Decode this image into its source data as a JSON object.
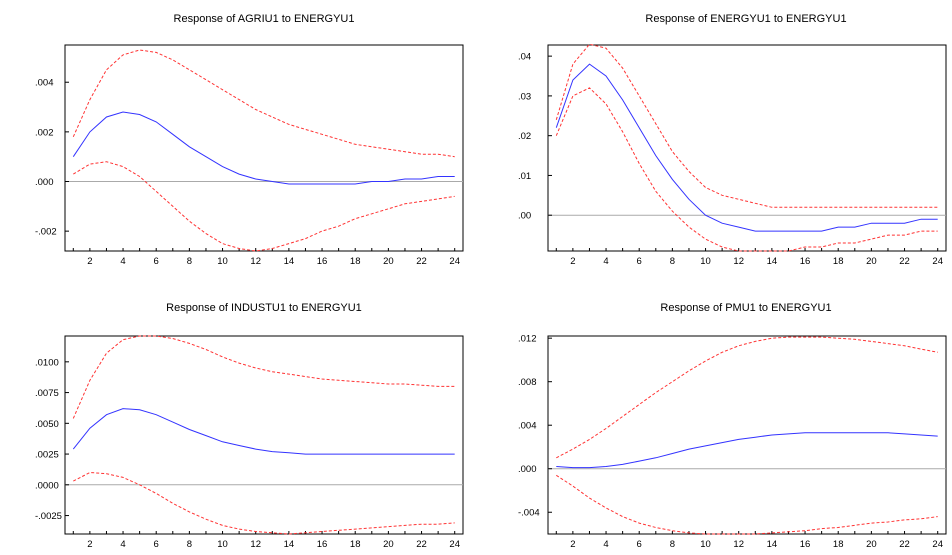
{
  "chart_data": [
    {
      "type": "line",
      "title": "Response of AGRIU1 to ENERGYU1",
      "xlabel": "",
      "ylabel": "",
      "xlim": [
        0.5,
        24.5
      ],
      "ylim": [
        -0.0028,
        0.0055
      ],
      "x_ticks": [
        2,
        4,
        6,
        8,
        10,
        12,
        14,
        16,
        18,
        20,
        22,
        24
      ],
      "y_ticks": [
        -0.002,
        0.0,
        0.002,
        0.004
      ],
      "y_tick_labels": [
        "-.002",
        ".000",
        ".002",
        ".004"
      ],
      "zero_line": true,
      "grid": false,
      "x": [
        1,
        2,
        3,
        4,
        5,
        6,
        7,
        8,
        9,
        10,
        11,
        12,
        13,
        14,
        15,
        16,
        17,
        18,
        19,
        20,
        21,
        22,
        23,
        24
      ],
      "series": [
        {
          "role": "response",
          "color": "#3333ff",
          "dashed": false,
          "values": [
            0.001,
            0.002,
            0.0026,
            0.0028,
            0.0027,
            0.0024,
            0.0019,
            0.0014,
            0.001,
            0.0006,
            0.0003,
            0.0001,
            0.0,
            -0.0001,
            -0.0001,
            -0.0001,
            -0.0001,
            -0.0001,
            0.0,
            0.0,
            0.0001,
            0.0001,
            0.0002,
            0.0002
          ]
        },
        {
          "role": "upper band",
          "color": "#ff3333",
          "dashed": true,
          "values": [
            0.0018,
            0.0033,
            0.0045,
            0.0051,
            0.0053,
            0.0052,
            0.0049,
            0.0045,
            0.0041,
            0.0037,
            0.0033,
            0.0029,
            0.0026,
            0.0023,
            0.0021,
            0.0019,
            0.0017,
            0.0015,
            0.0014,
            0.0013,
            0.0012,
            0.0011,
            0.0011,
            0.001
          ]
        },
        {
          "role": "lower band",
          "color": "#ff3333",
          "dashed": true,
          "values": [
            0.0003,
            0.0007,
            0.0008,
            0.0006,
            0.0002,
            -0.0004,
            -0.001,
            -0.0016,
            -0.0021,
            -0.0025,
            -0.0027,
            -0.0028,
            -0.0027,
            -0.0025,
            -0.0023,
            -0.002,
            -0.0018,
            -0.0015,
            -0.0013,
            -0.0011,
            -0.0009,
            -0.0008,
            -0.0007,
            -0.0006
          ]
        }
      ]
    },
    {
      "type": "line",
      "title": "Response of ENERGYU1 to ENERGYU1",
      "xlabel": "",
      "ylabel": "",
      "xlim": [
        0.5,
        24.5
      ],
      "ylim": [
        -0.009,
        0.0428
      ],
      "x_ticks": [
        2,
        4,
        6,
        8,
        10,
        12,
        14,
        16,
        18,
        20,
        22,
        24
      ],
      "y_ticks": [
        0.0,
        0.01,
        0.02,
        0.03,
        0.04
      ],
      "y_tick_labels": [
        ".00",
        ".01",
        ".02",
        ".03",
        ".04"
      ],
      "zero_line": true,
      "grid": false,
      "x": [
        1,
        2,
        3,
        4,
        5,
        6,
        7,
        8,
        9,
        10,
        11,
        12,
        13,
        14,
        15,
        16,
        17,
        18,
        19,
        20,
        21,
        22,
        23,
        24
      ],
      "series": [
        {
          "role": "response",
          "color": "#3333ff",
          "dashed": false,
          "values": [
            0.022,
            0.034,
            0.038,
            0.035,
            0.029,
            0.022,
            0.015,
            0.009,
            0.004,
            0.0,
            -0.002,
            -0.003,
            -0.004,
            -0.004,
            -0.004,
            -0.004,
            -0.004,
            -0.003,
            -0.003,
            -0.002,
            -0.002,
            -0.002,
            -0.001,
            -0.001
          ]
        },
        {
          "role": "upper band",
          "color": "#ff3333",
          "dashed": true,
          "values": [
            0.024,
            0.038,
            0.043,
            0.042,
            0.037,
            0.03,
            0.023,
            0.016,
            0.011,
            0.007,
            0.005,
            0.004,
            0.003,
            0.002,
            0.002,
            0.002,
            0.002,
            0.002,
            0.002,
            0.002,
            0.002,
            0.002,
            0.002,
            0.002
          ]
        },
        {
          "role": "lower band",
          "color": "#ff3333",
          "dashed": true,
          "values": [
            0.02,
            0.03,
            0.032,
            0.028,
            0.021,
            0.013,
            0.006,
            0.001,
            -0.003,
            -0.006,
            -0.008,
            -0.009,
            -0.009,
            -0.009,
            -0.009,
            -0.008,
            -0.008,
            -0.007,
            -0.007,
            -0.006,
            -0.005,
            -0.005,
            -0.004,
            -0.004
          ]
        }
      ]
    },
    {
      "type": "line",
      "title": "Response of INDUSTU1 to ENERGYU1",
      "xlabel": "",
      "ylabel": "",
      "xlim": [
        0.5,
        24.5
      ],
      "ylim": [
        -0.004,
        0.0121
      ],
      "x_ticks": [
        2,
        4,
        6,
        8,
        10,
        12,
        14,
        16,
        18,
        20,
        22,
        24
      ],
      "y_ticks": [
        -0.0025,
        0.0,
        0.0025,
        0.005,
        0.0075,
        0.01
      ],
      "y_tick_labels": [
        "-.0025",
        ".0000",
        ".0025",
        ".0050",
        ".0075",
        ".0100"
      ],
      "zero_line": true,
      "grid": false,
      "x": [
        1,
        2,
        3,
        4,
        5,
        6,
        7,
        8,
        9,
        10,
        11,
        12,
        13,
        14,
        15,
        16,
        17,
        18,
        19,
        20,
        21,
        22,
        23,
        24
      ],
      "series": [
        {
          "role": "response",
          "color": "#3333ff",
          "dashed": false,
          "values": [
            0.0029,
            0.0046,
            0.0057,
            0.0062,
            0.0061,
            0.0057,
            0.0051,
            0.0045,
            0.004,
            0.0035,
            0.0032,
            0.0029,
            0.0027,
            0.0026,
            0.0025,
            0.0025,
            0.0025,
            0.0025,
            0.0025,
            0.0025,
            0.0025,
            0.0025,
            0.0025,
            0.0025
          ]
        },
        {
          "role": "upper band",
          "color": "#ff3333",
          "dashed": true,
          "values": [
            0.0054,
            0.0085,
            0.0107,
            0.0118,
            0.0121,
            0.0121,
            0.0119,
            0.0115,
            0.011,
            0.0104,
            0.0099,
            0.0095,
            0.0092,
            0.009,
            0.0088,
            0.0086,
            0.0085,
            0.0084,
            0.0083,
            0.0082,
            0.0082,
            0.0081,
            0.008,
            0.008
          ]
        },
        {
          "role": "lower band",
          "color": "#ff3333",
          "dashed": true,
          "values": [
            0.0003,
            0.001,
            0.0009,
            0.0006,
            0.0,
            -0.0007,
            -0.0015,
            -0.0022,
            -0.0028,
            -0.0033,
            -0.0036,
            -0.0038,
            -0.0039,
            -0.004,
            -0.0039,
            -0.0038,
            -0.0037,
            -0.0036,
            -0.0035,
            -0.0034,
            -0.0033,
            -0.0032,
            -0.0032,
            -0.0031
          ]
        }
      ]
    },
    {
      "type": "line",
      "title": "Response of PMU1 to ENERGYU1",
      "xlabel": "",
      "ylabel": "",
      "xlim": [
        0.5,
        24.5
      ],
      "ylim": [
        -0.006,
        0.0122
      ],
      "x_ticks": [
        2,
        4,
        6,
        8,
        10,
        12,
        14,
        16,
        18,
        20,
        22,
        24
      ],
      "y_ticks": [
        -0.004,
        0.0,
        0.004,
        0.008,
        0.012
      ],
      "y_tick_labels": [
        "-.004",
        ".000",
        ".004",
        ".008",
        ".012"
      ],
      "zero_line": true,
      "grid": false,
      "x": [
        1,
        2,
        3,
        4,
        5,
        6,
        7,
        8,
        9,
        10,
        11,
        12,
        13,
        14,
        15,
        16,
        17,
        18,
        19,
        20,
        21,
        22,
        23,
        24
      ],
      "series": [
        {
          "role": "response",
          "color": "#3333ff",
          "dashed": false,
          "values": [
            0.0002,
            0.0001,
            0.0001,
            0.0002,
            0.0004,
            0.0007,
            0.001,
            0.0014,
            0.0018,
            0.0021,
            0.0024,
            0.0027,
            0.0029,
            0.0031,
            0.0032,
            0.0033,
            0.0033,
            0.0033,
            0.0033,
            0.0033,
            0.0033,
            0.0032,
            0.0031,
            0.003
          ]
        },
        {
          "role": "upper band",
          "color": "#ff3333",
          "dashed": true,
          "values": [
            0.001,
            0.0018,
            0.0027,
            0.0037,
            0.0048,
            0.0059,
            0.007,
            0.008,
            0.009,
            0.0099,
            0.0107,
            0.0113,
            0.0117,
            0.012,
            0.0121,
            0.0121,
            0.0121,
            0.012,
            0.0119,
            0.0117,
            0.0115,
            0.0113,
            0.011,
            0.0107
          ]
        },
        {
          "role": "lower band",
          "color": "#ff3333",
          "dashed": true,
          "values": [
            -0.0006,
            -0.0016,
            -0.0027,
            -0.0036,
            -0.0044,
            -0.005,
            -0.0054,
            -0.0057,
            -0.0059,
            -0.006,
            -0.006,
            -0.006,
            -0.006,
            -0.0059,
            -0.0058,
            -0.0057,
            -0.0055,
            -0.0054,
            -0.0052,
            -0.005,
            -0.0049,
            -0.0047,
            -0.0046,
            -0.0044
          ]
        }
      ]
    }
  ]
}
